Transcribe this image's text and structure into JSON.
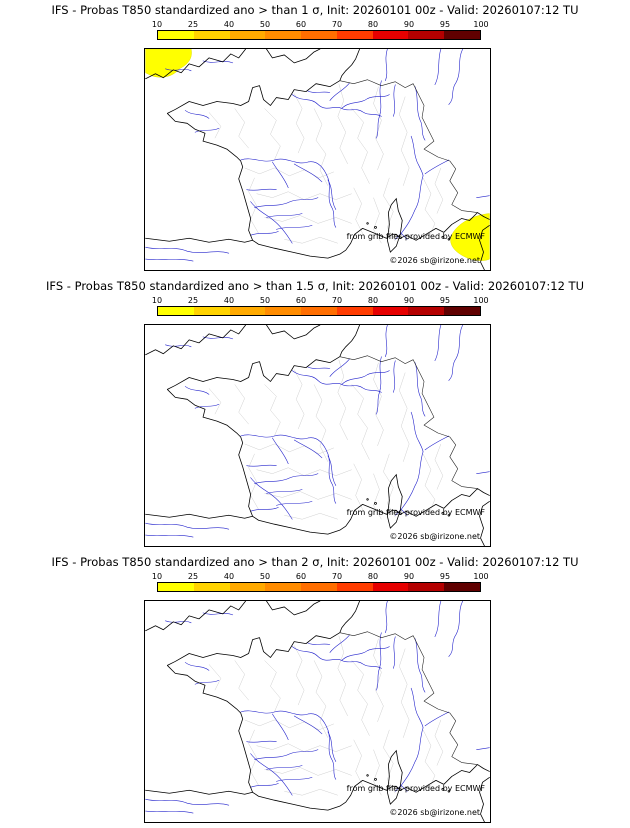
{
  "colorbar": {
    "ticks": [
      "10",
      "25",
      "40",
      "50",
      "60",
      "70",
      "80",
      "90",
      "95",
      "100"
    ],
    "segment_colors": [
      "#ffff00",
      "#ffd300",
      "#ffaa00",
      "#ff8c00",
      "#ff6e00",
      "#ff3c00",
      "#e60000",
      "#b40000",
      "#600000"
    ],
    "shade_color": "#ffff00"
  },
  "panels": [
    {
      "title": "IFS - Probas T850  standardized ano > than 1 σ, Init: 20260101 00z - Valid: 20260107:12 TU",
      "credit": "from grib files provided by ECMWF",
      "copyright": "©2026 sb@irizone.net"
    },
    {
      "title": "IFS - Probas T850  standardized ano > than 1.5 σ, Init: 20260101 00z - Valid: 20260107:12 TU",
      "credit": "from grib files provided by ECMWF",
      "copyright": "©2026 sb@irizone.net"
    },
    {
      "title": "IFS - Probas T850  standardized ano > than 2 σ, Init: 20260101 00z - Valid: 20260107:12 TU",
      "credit": "from grib files provided by ECMWF",
      "copyright": "©2026 sb@irizone.net"
    }
  ]
}
